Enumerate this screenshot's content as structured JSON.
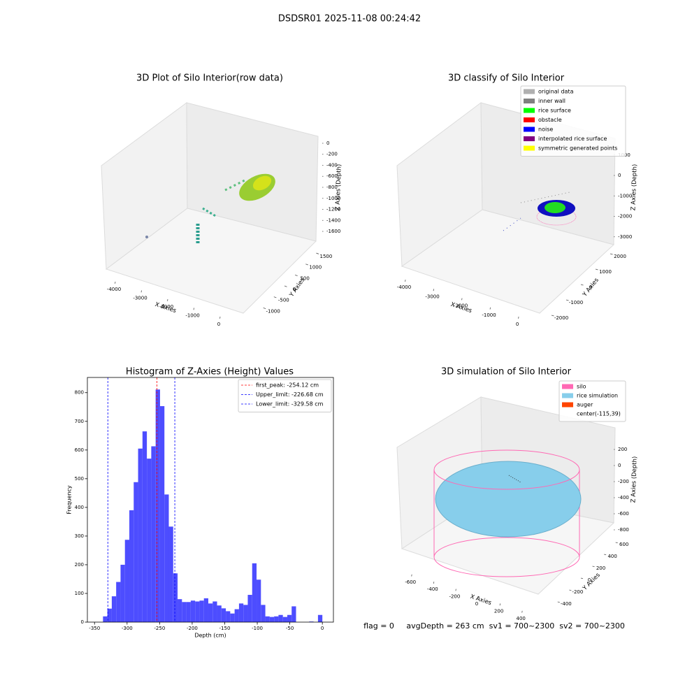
{
  "title": "DSDSR01 2025-11-08 00:24:42",
  "chart_data": [
    {
      "type": "scatter3d",
      "title": "3D Plot of Silo Interior(row data)",
      "xlabel": "X Axies",
      "ylabel": "Y Axies",
      "zlabel": "Z Axies (Depth)",
      "xlim": [
        -4300,
        300
      ],
      "ylim": [
        -1200,
        1700
      ],
      "zlim": [
        -1700,
        100
      ],
      "xticks": [
        -4000,
        -3000,
        -2000,
        -1000,
        0
      ],
      "yticks": [
        -1000,
        -500,
        0,
        500,
        1000,
        1500
      ],
      "zticks": [
        0,
        -200,
        -400,
        -600,
        -800,
        -1000,
        -1200,
        -1400,
        -1600
      ]
    },
    {
      "type": "scatter3d",
      "title": "3D classify of Silo Interior",
      "xlabel": "X Axies",
      "ylabel": "Y Axies",
      "zlabel": "Z Axies (Depth)",
      "xlim": [
        -4300,
        300
      ],
      "ylim": [
        -2300,
        2300
      ],
      "zlim": [
        -3200,
        1300
      ],
      "xticks": [
        -4000,
        -3000,
        -2000,
        -1000,
        0
      ],
      "yticks": [
        -2000,
        -1000,
        0,
        1000,
        2000
      ],
      "zticks": [
        1000,
        0,
        -1000,
        -2000,
        -3000
      ],
      "legend_loc": "upper right",
      "series": [
        {
          "name": "original data",
          "color": "#b0b0b0"
        },
        {
          "name": "inner wall",
          "color": "#808080"
        },
        {
          "name": "rice surface",
          "color": "#00ff00"
        },
        {
          "name": "obstacle",
          "color": "#ff0000"
        },
        {
          "name": "noise",
          "color": "#0000ff"
        },
        {
          "name": "interpolated rice surface",
          "color": "#800080"
        },
        {
          "name": "symmetric generated points",
          "color": "#ffff00"
        }
      ]
    },
    {
      "type": "histogram",
      "title": "Histogram of Z-Axies (Height) Values",
      "xlabel": "Depth (cm)",
      "ylabel": "Frequency",
      "color": "#4d4dff",
      "xlim": [
        -361,
        17
      ],
      "ylim": [
        0,
        853
      ],
      "xticks": [
        -350,
        -300,
        -250,
        -200,
        -150,
        -100,
        -50,
        0
      ],
      "yticks": [
        0,
        100,
        200,
        300,
        400,
        500,
        600,
        700,
        800
      ],
      "legend_loc": "upper right",
      "bins": [
        -337,
        -330.26,
        -323.52,
        -316.78,
        -310.04,
        -303.3,
        -296.56,
        -289.82,
        -283.08,
        -276.34,
        -269.6,
        -262.86,
        -256.12,
        -249.38,
        -242.64,
        -235.9,
        -229.16,
        -222.42,
        -215.68,
        -208.94,
        -202.2,
        -195.46,
        -188.72,
        -181.98,
        -175.24,
        -168.5,
        -161.76,
        -155.02,
        -148.28,
        -141.54,
        -134.8,
        -128.06,
        -121.32,
        -114.58,
        -107.84,
        -101.1,
        -94.36,
        -87.62,
        -80.88,
        -74.14,
        -67.4,
        -60.66,
        -53.92,
        -47.18,
        -40.44,
        -33.7,
        -26.96,
        -20.22,
        -13.48,
        -6.74,
        0
      ],
      "counts": [
        20,
        47,
        90,
        140,
        200,
        287,
        390,
        488,
        605,
        665,
        570,
        613,
        811,
        753,
        445,
        333,
        170,
        80,
        70,
        70,
        75,
        72,
        75,
        83,
        65,
        72,
        58,
        48,
        38,
        30,
        45,
        65,
        60,
        95,
        205,
        148,
        60,
        20,
        18,
        20,
        25,
        18,
        25,
        55,
        0,
        0,
        0,
        2,
        0,
        25
      ],
      "lines": [
        {
          "name": "first_peak: -254.12 cm",
          "color": "#ff0000",
          "value": -254.12
        },
        {
          "name": "Upper_limit: -226.68 cm",
          "color": "#0000ff",
          "value": -226.68
        },
        {
          "name": "Lower_limit: -329.58 cm",
          "color": "#0000ff",
          "value": -329.58
        }
      ]
    },
    {
      "type": "surface3d",
      "title": "3D simulation of Silo Interior",
      "xlabel": "X Axies",
      "ylabel": "Y Axies",
      "zlabel": "Z Axies (Depth)",
      "xlim": [
        -700,
        500
      ],
      "ylim": [
        -500,
        700
      ],
      "zlim": [
        -900,
        350
      ],
      "xticks": [
        -600,
        -400,
        -200,
        0,
        200,
        400
      ],
      "yticks": [
        -400,
        -200,
        0,
        200,
        400,
        600
      ],
      "zticks": [
        200,
        0,
        -200,
        -400,
        -600,
        -800
      ],
      "legend_loc": "upper right",
      "series": [
        {
          "name": "silo",
          "color": "#ff69b4"
        },
        {
          "name": "rice simulation",
          "color": "#87ceeb"
        },
        {
          "name": "auger",
          "color": "#ff4500"
        },
        {
          "name": "center(-115,39)"
        }
      ],
      "footer": "flag = 0     avgDepth = 263 cm  sv1 = 700~2300  sv2 = 700~2300"
    }
  ]
}
